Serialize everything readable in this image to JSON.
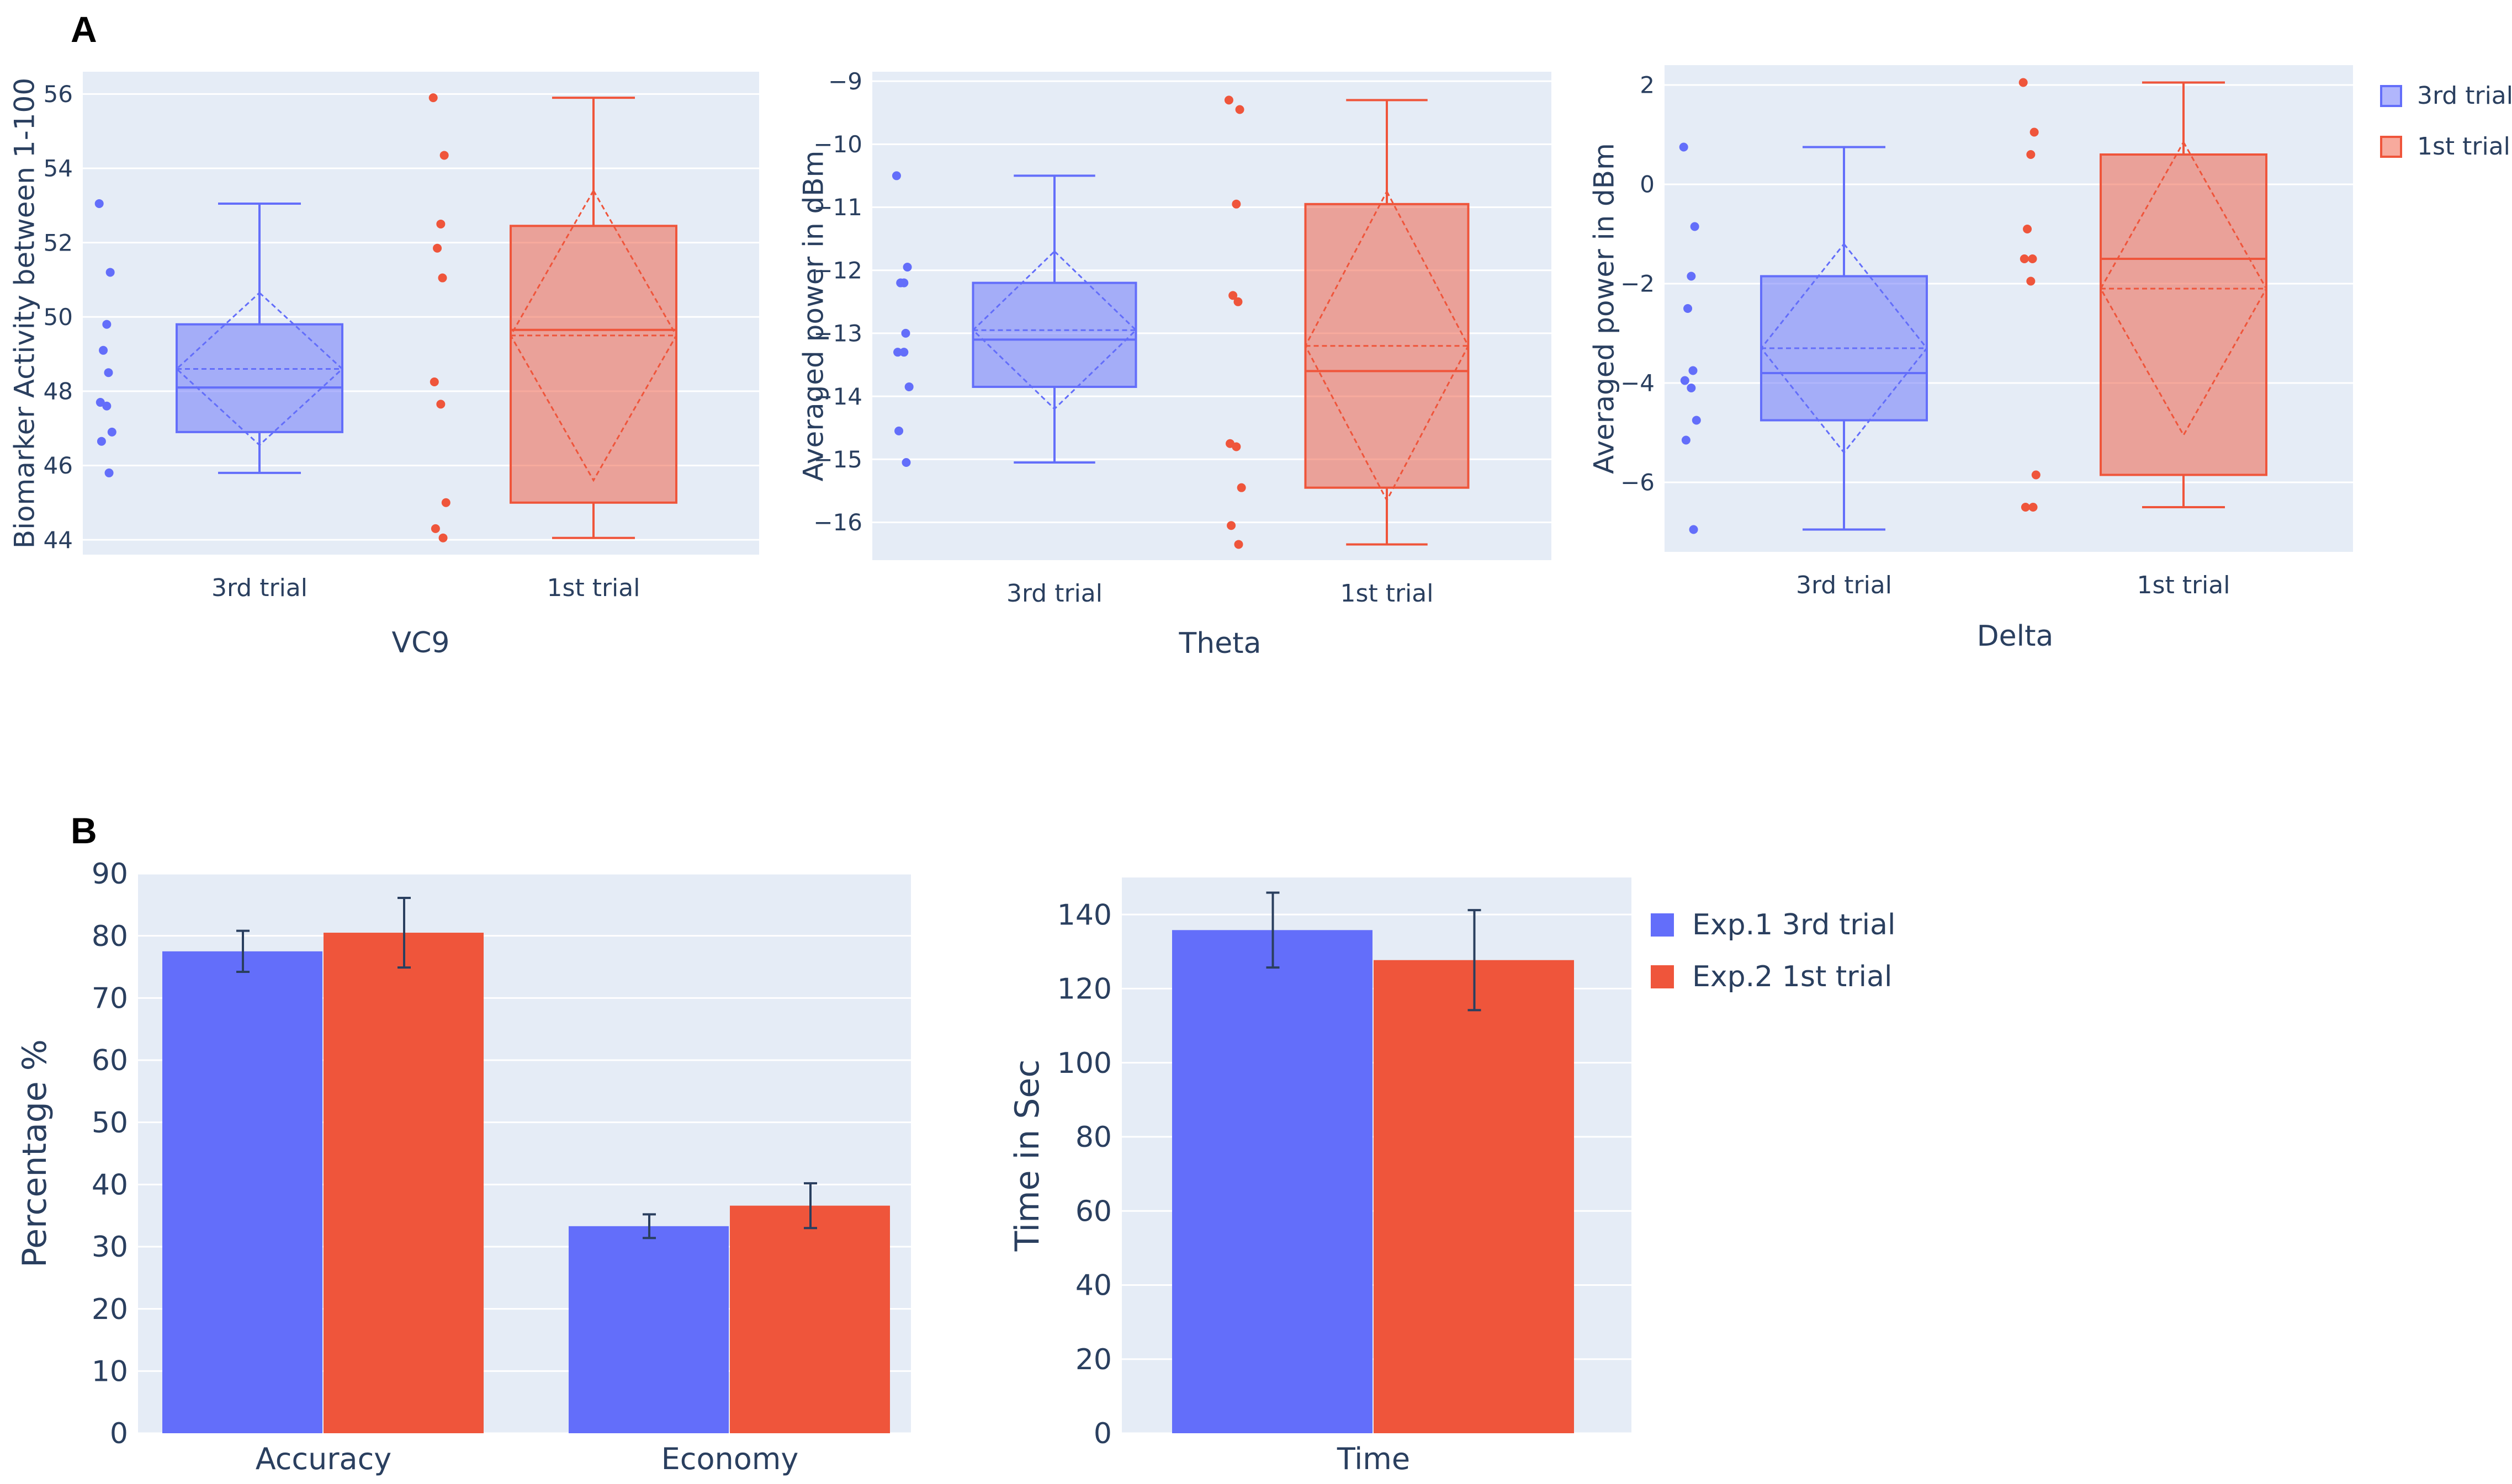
{
  "panel_labels": [
    "A",
    "B"
  ],
  "colors": {
    "blue": "#636efa",
    "red": "#ef553b",
    "plot_bg": "#e5ecf6",
    "grid": "#ffffff",
    "text": "#2a3f5f",
    "error": "#2a3f5f"
  },
  "legend_a": [
    "3rd trial",
    "1st trial"
  ],
  "legend_b": [
    "Exp.1 3rd trial",
    "Exp.2 1st trial"
  ],
  "chart_data": [
    {
      "type": "box",
      "id": "vc9",
      "xlabel": "VC9",
      "ylabel": "Biomarker Activity between 1-100",
      "ylim": [
        43.6,
        56.6
      ],
      "yticks": [
        44,
        46,
        48,
        50,
        52,
        54,
        56
      ],
      "categories": [
        "3rd trial",
        "1st trial"
      ],
      "boxes": [
        {
          "name": "3rd trial",
          "color": "blue",
          "min": 45.8,
          "q1": 46.9,
          "median": 48.1,
          "q3": 49.8,
          "max": 53.05,
          "mean": 48.6,
          "sd": 2.05,
          "points": [
            53.05,
            51.2,
            49.8,
            49.1,
            48.5,
            47.7,
            47.6,
            46.9,
            46.65,
            45.8
          ]
        },
        {
          "name": "1st trial",
          "color": "red",
          "min": 44.05,
          "q1": 45.0,
          "median": 49.65,
          "q3": 52.45,
          "max": 55.9,
          "mean": 49.5,
          "sd": 3.9,
          "points": [
            55.9,
            54.35,
            52.5,
            51.85,
            51.05,
            48.25,
            47.65,
            45.0,
            44.3,
            44.05
          ]
        }
      ]
    },
    {
      "type": "box",
      "id": "theta",
      "xlabel": "Theta",
      "ylabel": "Averaged power in dBm",
      "ylim": [
        -16.6,
        -8.85
      ],
      "yticks": [
        -16,
        -15,
        -14,
        -13,
        -12,
        -11,
        -10,
        -9
      ],
      "categories": [
        "3rd trial",
        "1st trial"
      ],
      "boxes": [
        {
          "name": "3rd trial",
          "color": "blue",
          "min": -15.05,
          "q1": -13.85,
          "median": -13.1,
          "q3": -12.2,
          "max": -10.5,
          "mean": -12.95,
          "sd": 1.25,
          "points": [
            -10.5,
            -11.95,
            -12.2,
            -12.2,
            -13.0,
            -13.3,
            -13.3,
            -13.85,
            -14.55,
            -15.05
          ]
        },
        {
          "name": "1st trial",
          "color": "red",
          "min": -16.35,
          "q1": -15.45,
          "median": -13.6,
          "q3": -10.95,
          "max": -9.3,
          "mean": -13.2,
          "sd": 2.45,
          "points": [
            -9.3,
            -9.45,
            -10.95,
            -12.4,
            -12.5,
            -14.75,
            -14.8,
            -15.45,
            -16.05,
            -16.35
          ]
        }
      ]
    },
    {
      "type": "box",
      "id": "delta",
      "xlabel": "Delta",
      "ylabel": "Averaged power in dBm",
      "ylim": [
        -7.4,
        2.4
      ],
      "yticks": [
        -6,
        -4,
        -2,
        0,
        2
      ],
      "categories": [
        "3rd trial",
        "1st trial"
      ],
      "boxes": [
        {
          "name": "3rd trial",
          "color": "blue",
          "min": -6.95,
          "q1": -4.75,
          "median": -3.8,
          "q3": -1.85,
          "max": 0.75,
          "mean": -3.3,
          "sd": 2.1,
          "points": [
            0.75,
            -0.85,
            -1.85,
            -2.5,
            -3.75,
            -3.95,
            -4.1,
            -4.75,
            -5.15,
            -6.95
          ]
        },
        {
          "name": "1st trial",
          "color": "red",
          "min": -6.5,
          "q1": -5.85,
          "median": -1.5,
          "q3": 0.6,
          "max": 2.05,
          "mean": -2.1,
          "sd": 2.95,
          "points": [
            2.05,
            1.05,
            0.6,
            -0.9,
            -1.5,
            -1.5,
            -1.95,
            -5.85,
            -6.5,
            -6.5
          ]
        }
      ]
    },
    {
      "type": "bar",
      "id": "percentage",
      "xlabel": "",
      "ylabel": "Percentage %",
      "ylim": [
        0,
        90
      ],
      "yticks": [
        0,
        10,
        20,
        30,
        40,
        50,
        60,
        70,
        80,
        90
      ],
      "categories": [
        "Accuracy",
        "Economy"
      ],
      "series": [
        {
          "name": "Exp.1 3rd trial",
          "color": "blue",
          "values": [
            77.5,
            33.3
          ],
          "errors": [
            3.3,
            1.9
          ]
        },
        {
          "name": "Exp.2 1st trial",
          "color": "red",
          "values": [
            80.5,
            36.6
          ],
          "errors": [
            5.6,
            3.6
          ]
        }
      ]
    },
    {
      "type": "bar",
      "id": "time",
      "xlabel": "",
      "ylabel": "Time in Sec",
      "ylim": [
        0,
        150
      ],
      "yticks": [
        0,
        20,
        40,
        60,
        80,
        100,
        120,
        140
      ],
      "categories": [
        "Time"
      ],
      "series": [
        {
          "name": "Exp.1 3rd trial",
          "color": "blue",
          "values": [
            135.8
          ],
          "errors": [
            10.1
          ]
        },
        {
          "name": "Exp.2 1st trial",
          "color": "red",
          "values": [
            127.7
          ],
          "errors": [
            13.5
          ]
        }
      ]
    }
  ]
}
